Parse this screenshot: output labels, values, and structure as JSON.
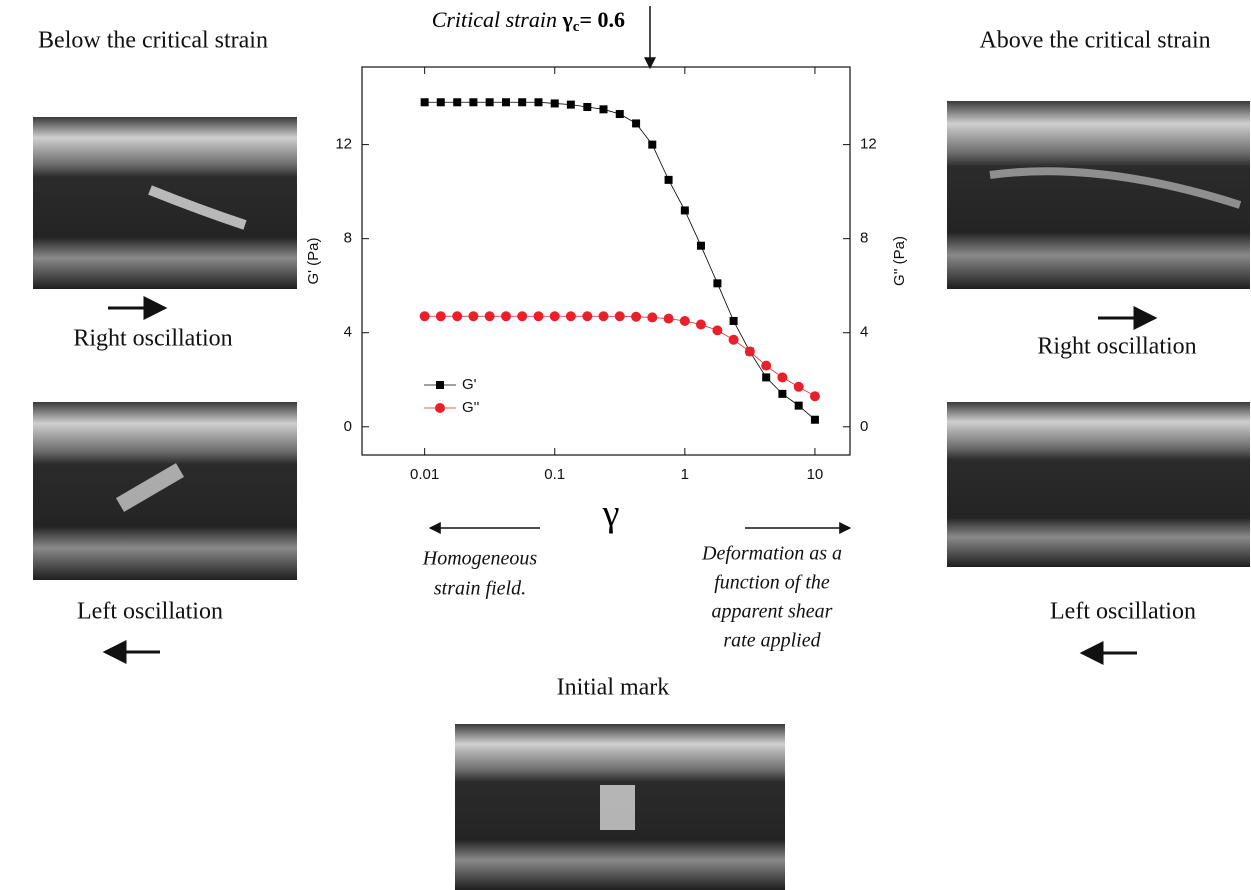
{
  "chart_data": {
    "type": "line",
    "title_parts": [
      "Critical strain",
      "γ",
      "c",
      "= 0.6"
    ],
    "x_label": "γ",
    "y_label": "G' (Pa)",
    "y2_label": "G'' (Pa)",
    "x_log": true,
    "xlim": [
      0.0033,
      18.6
    ],
    "xticks": [
      0.01,
      0.1,
      1,
      10
    ],
    "ylim": [
      -1.2,
      15.3
    ],
    "yticks": [
      0,
      4,
      8,
      12
    ],
    "y2lim": [
      -1.2,
      15.3
    ],
    "y2ticks": [
      0,
      4,
      8,
      12
    ],
    "legend": "lower left",
    "x": [
      0.01,
      0.0133,
      0.0178,
      0.0237,
      0.0316,
      0.0422,
      0.0562,
      0.075,
      0.1,
      0.133,
      0.178,
      0.237,
      0.316,
      0.422,
      0.562,
      0.75,
      1,
      1.33,
      1.78,
      2.37,
      3.16,
      4.22,
      5.62,
      7.5,
      10
    ],
    "series": [
      {
        "name": "G'",
        "color": "#000000",
        "marker": "square",
        "values": [
          13.8,
          13.8,
          13.8,
          13.8,
          13.8,
          13.8,
          13.8,
          13.8,
          13.75,
          13.7,
          13.6,
          13.5,
          13.3,
          12.9,
          12.0,
          10.5,
          9.2,
          7.7,
          6.1,
          4.5,
          3.2,
          2.1,
          1.4,
          0.9,
          0.3
        ]
      },
      {
        "name": "G''",
        "color": "#e8202a",
        "marker": "circle",
        "axis": "y2",
        "values": [
          4.7,
          4.7,
          4.7,
          4.7,
          4.7,
          4.7,
          4.7,
          4.7,
          4.7,
          4.7,
          4.7,
          4.7,
          4.7,
          4.68,
          4.65,
          4.6,
          4.5,
          4.35,
          4.1,
          3.7,
          3.2,
          2.6,
          2.1,
          1.7,
          1.3
        ]
      }
    ],
    "annotations": {
      "left_note": [
        "Homogeneous",
        "strain field."
      ],
      "right_note": [
        "Deformation as a",
        "function of the",
        "apparent shear",
        "rate applied"
      ]
    }
  },
  "panels": {
    "left": {
      "heading": "Below the critical strain",
      "top_caption": "Right oscillation",
      "bottom_caption": "Left oscillation"
    },
    "right": {
      "heading": "Above the critical strain",
      "top_caption": "Right oscillation",
      "bottom_caption": "Left oscillation"
    },
    "bottom": {
      "caption": "Initial mark"
    }
  }
}
